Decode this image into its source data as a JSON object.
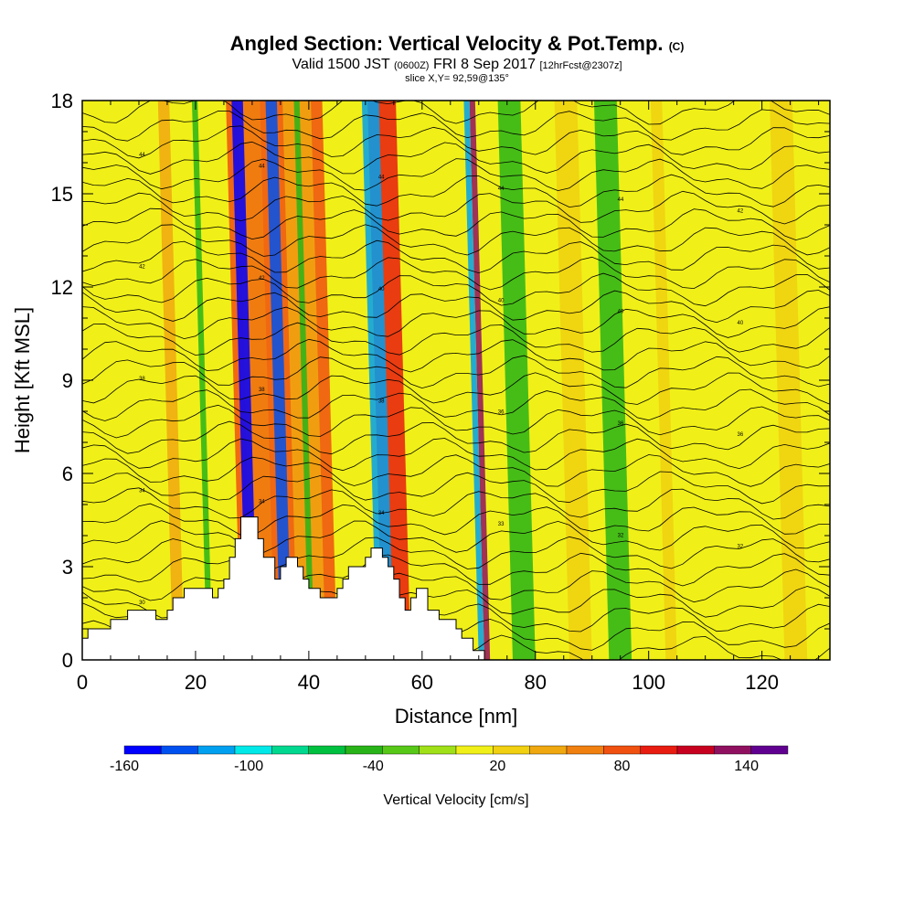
{
  "header": {
    "title": "Angled Section: Vertical Velocity & Pot.Temp.",
    "title_suffix": "(C)",
    "valid_prefix": "Valid 1500 JST",
    "valid_utc": "(0600Z)",
    "valid_date": "FRI 8 Sep 2017",
    "valid_fcst": "[12hrFcst@2307z]",
    "slice": "slice X,Y= 92,59@135°"
  },
  "colorbar": {
    "title": "Vertical Velocity [cm/s]",
    "labels": [
      "-160",
      "-100",
      "-40",
      "20",
      "80",
      "140"
    ],
    "colors": [
      "#0000ff",
      "#0050f0",
      "#00a0f0",
      "#00e8e8",
      "#00d890",
      "#00c040",
      "#28b418",
      "#58c818",
      "#a0e018",
      "#f0f018",
      "#f0d010",
      "#f0a810",
      "#f08010",
      "#f05010",
      "#e81c10",
      "#c80020",
      "#901060",
      "#600090"
    ]
  },
  "chart_data": {
    "type": "heatmap",
    "title": "Angled Section: Vertical Velocity & Pot.Temp.",
    "xlabel": "Distance [nm]",
    "ylabel": "Height [Kft MSL]",
    "xlim": [
      0,
      132
    ],
    "ylim": [
      0,
      18
    ],
    "x_ticks": [
      "0",
      "20",
      "40",
      "60",
      "80",
      "100",
      "120"
    ],
    "y_ticks": [
      "0",
      "3",
      "6",
      "9",
      "12",
      "15",
      "18"
    ],
    "variable": "Vertical Velocity [cm/s]",
    "color_range": [
      -160,
      160
    ],
    "terrain": [
      [
        0,
        0
      ],
      [
        0,
        0.7
      ],
      [
        1,
        0.7
      ],
      [
        1,
        1.0
      ],
      [
        5,
        1.0
      ],
      [
        5,
        1.3
      ],
      [
        8,
        1.3
      ],
      [
        8,
        1.6
      ],
      [
        13,
        1.6
      ],
      [
        13,
        1.3
      ],
      [
        15,
        1.3
      ],
      [
        15,
        1.6
      ],
      [
        16,
        1.6
      ],
      [
        16,
        2.0
      ],
      [
        18,
        2.0
      ],
      [
        18,
        2.3
      ],
      [
        23,
        2.3
      ],
      [
        23,
        2.0
      ],
      [
        24,
        2.0
      ],
      [
        24,
        2.3
      ],
      [
        25,
        2.3
      ],
      [
        25,
        2.6
      ],
      [
        26,
        2.6
      ],
      [
        26,
        3.3
      ],
      [
        27,
        3.3
      ],
      [
        27,
        3.9
      ],
      [
        28,
        3.9
      ],
      [
        28,
        4.6
      ],
      [
        31,
        4.6
      ],
      [
        31,
        3.9
      ],
      [
        32,
        3.9
      ],
      [
        32,
        3.3
      ],
      [
        34,
        3.3
      ],
      [
        34,
        2.6
      ],
      [
        35,
        2.6
      ],
      [
        35,
        3.0
      ],
      [
        36,
        3.0
      ],
      [
        36,
        3.3
      ],
      [
        38,
        3.3
      ],
      [
        38,
        3.0
      ],
      [
        39,
        3.0
      ],
      [
        39,
        2.6
      ],
      [
        40,
        2.6
      ],
      [
        40,
        2.3
      ],
      [
        42,
        2.3
      ],
      [
        42,
        2.0
      ],
      [
        45,
        2.0
      ],
      [
        45,
        2.3
      ],
      [
        46,
        2.3
      ],
      [
        46,
        2.6
      ],
      [
        47,
        2.6
      ],
      [
        47,
        3.0
      ],
      [
        50,
        3.0
      ],
      [
        50,
        3.3
      ],
      [
        51,
        3.3
      ],
      [
        51,
        3.6
      ],
      [
        53,
        3.6
      ],
      [
        53,
        3.3
      ],
      [
        54,
        3.3
      ],
      [
        54,
        3.0
      ],
      [
        55,
        3.0
      ],
      [
        55,
        2.6
      ],
      [
        56,
        2.6
      ],
      [
        56,
        2.0
      ],
      [
        57,
        2.0
      ],
      [
        57,
        1.6
      ],
      [
        58,
        1.6
      ],
      [
        58,
        2.0
      ],
      [
        59,
        2.0
      ],
      [
        59,
        2.3
      ],
      [
        61,
        2.3
      ],
      [
        61,
        1.6
      ],
      [
        63,
        1.6
      ],
      [
        63,
        1.3
      ],
      [
        66,
        1.3
      ],
      [
        66,
        1.0
      ],
      [
        67,
        1.0
      ],
      [
        67,
        0.7
      ],
      [
        69,
        0.7
      ],
      [
        69,
        0.3
      ],
      [
        71,
        0.3
      ],
      [
        71,
        0
      ],
      [
        132,
        0
      ],
      [
        132,
        0
      ]
    ],
    "updraft_bands": [
      {
        "x": [
          28,
          45
        ],
        "value": 80
      },
      {
        "x": [
          53,
          58
        ],
        "value": 100
      },
      {
        "x": [
          30,
          34
        ],
        "value": 60
      },
      {
        "x": [
          38,
          43
        ],
        "value": 40
      },
      {
        "x": [
          71,
          72
        ],
        "value": 140
      },
      {
        "x": [
          16,
          18
        ],
        "value": 40
      },
      {
        "x": [
          86,
          90
        ],
        "value": 30
      },
      {
        "x": [
          103,
          105
        ],
        "value": 30
      },
      {
        "x": [
          124,
          128
        ],
        "value": 30
      }
    ],
    "downdraft_bands": [
      {
        "x": [
          29,
          31
        ],
        "value": -160
      },
      {
        "x": [
          35,
          37
        ],
        "value": -130
      },
      {
        "x": [
          52,
          55
        ],
        "value": -110
      },
      {
        "x": [
          70,
          71
        ],
        "value": -110
      },
      {
        "x": [
          22,
          23
        ],
        "value": -40
      },
      {
        "x": [
          40,
          41
        ],
        "value": -50
      },
      {
        "x": [
          76,
          80
        ],
        "value": -50
      },
      {
        "x": [
          93,
          97
        ],
        "value": -50
      }
    ],
    "theta_contour_labels": [
      "44",
      "44",
      "44",
      "44",
      "44",
      "42",
      "42",
      "42",
      "40",
      "40",
      "40",
      "40",
      "38",
      "38",
      "38",
      "36",
      "36",
      "36",
      "34",
      "34",
      "34",
      "33",
      "32",
      "32",
      "30",
      "30",
      "28"
    ]
  }
}
